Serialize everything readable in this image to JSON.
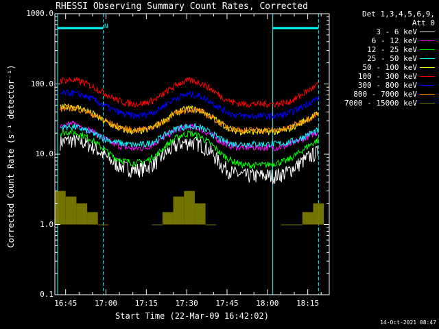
{
  "chart_data": {
    "type": "line",
    "title": "RHESSI Observing Summary Count Rates, Corrected",
    "xlabel": "Start Time (22-Mar-09 16:42:02)",
    "ylabel": "Corrected Count Rate (s⁻¹ detector⁻¹)",
    "yscale": "log",
    "ylim": [
      0.1,
      1000.0
    ],
    "xlim": [
      "16:41",
      "18:23"
    ],
    "y_ticks": [
      "0.1",
      "1.0",
      "10.0",
      "100.0",
      "1000.0"
    ],
    "x_ticks": [
      "16:45",
      "17:00",
      "17:15",
      "17:30",
      "17:45",
      "18:00",
      "18:15"
    ],
    "legend_header": [
      "Det 1,3,4,5,6,9,",
      "Att 0"
    ],
    "x": [
      "16:43",
      "16:47",
      "16:51",
      "16:55",
      "16:59",
      "17:03",
      "17:07",
      "17:11",
      "17:15",
      "17:19",
      "17:23",
      "17:27",
      "17:31",
      "17:35",
      "17:39",
      "17:43",
      "17:47",
      "17:51",
      "17:55",
      "17:59",
      "18:03",
      "18:07",
      "18:11",
      "18:15",
      "18:19"
    ],
    "series": [
      {
        "name": "3 - 6 keV",
        "color": "#ffffff",
        "values": [
          15,
          16,
          15,
          13,
          10,
          7.5,
          6.5,
          6,
          6.5,
          8,
          11,
          14,
          15,
          14,
          11,
          7,
          5.5,
          5,
          5,
          5,
          5,
          5.5,
          7,
          9,
          11
        ]
      },
      {
        "name": "6 - 12 keV",
        "color": "#ff00ff",
        "values": [
          26,
          27,
          25,
          21,
          17,
          14,
          12.5,
          12,
          12.5,
          15,
          19,
          23,
          25,
          23,
          19,
          15,
          13,
          12.5,
          12.5,
          12.5,
          12.5,
          13,
          15,
          18,
          21
        ]
      },
      {
        "name": "12 - 25 keV",
        "color": "#00ff00",
        "values": [
          20,
          21,
          19,
          16,
          12,
          9,
          8,
          7.5,
          8,
          10,
          14,
          18,
          20,
          18,
          14,
          10,
          8,
          7,
          7,
          7,
          7.5,
          8,
          10,
          13,
          16
        ]
      },
      {
        "name": "25 - 50 keV",
        "color": "#00ffff",
        "values": [
          24,
          25,
          23,
          20,
          17,
          15,
          14,
          13.5,
          14,
          16,
          20,
          24,
          25,
          24,
          20,
          16,
          14,
          14,
          14,
          14,
          14,
          14.5,
          16,
          19,
          22
        ]
      },
      {
        "name": "50 - 100 keV",
        "color": "#ffff00",
        "values": [
          46,
          48,
          45,
          38,
          30,
          25,
          22,
          21,
          22,
          26,
          33,
          41,
          45,
          42,
          35,
          27,
          22,
          21,
          21,
          21,
          21,
          22,
          26,
          32,
          38
        ]
      },
      {
        "name": "100 - 300 keV",
        "color": "#ff0000",
        "values": [
          112,
          115,
          107,
          92,
          76,
          62,
          54,
          52,
          54,
          62,
          80,
          102,
          112,
          105,
          85,
          66,
          55,
          52,
          52,
          52,
          52,
          54,
          63,
          80,
          98
        ]
      },
      {
        "name": "300 - 800 keV",
        "color": "#0000ff",
        "values": [
          73,
          75,
          70,
          61,
          50,
          42,
          37,
          35,
          37,
          42,
          54,
          66,
          72,
          68,
          56,
          44,
          37,
          35,
          35,
          35,
          35,
          37,
          43,
          53,
          63
        ]
      },
      {
        "name": "800 - 7000 keV",
        "color": "#ff8c00",
        "values": [
          44,
          46,
          43,
          37,
          31,
          26,
          23,
          22,
          23,
          26,
          32,
          40,
          44,
          41,
          34,
          27,
          23,
          22,
          22,
          22,
          22,
          23,
          27,
          32,
          38
        ]
      },
      {
        "name": "7000 - 15000 keV",
        "color": "#808000",
        "values": [
          3,
          2.5,
          2,
          1.5,
          1,
          null,
          null,
          null,
          null,
          1,
          1.5,
          2.5,
          3,
          2,
          1,
          null,
          null,
          null,
          null,
          null,
          null,
          1,
          1,
          1.5,
          2
        ]
      }
    ],
    "vertical_markers": [
      "16:42",
      "16:59",
      "18:02",
      "18:19"
    ],
    "shaded_ranges": [
      [
        "16:42",
        "16:59"
      ],
      [
        "18:02",
        "18:19"
      ]
    ],
    "flag_label": "N"
  },
  "timestamp": "14-Oct-2021 08:47"
}
